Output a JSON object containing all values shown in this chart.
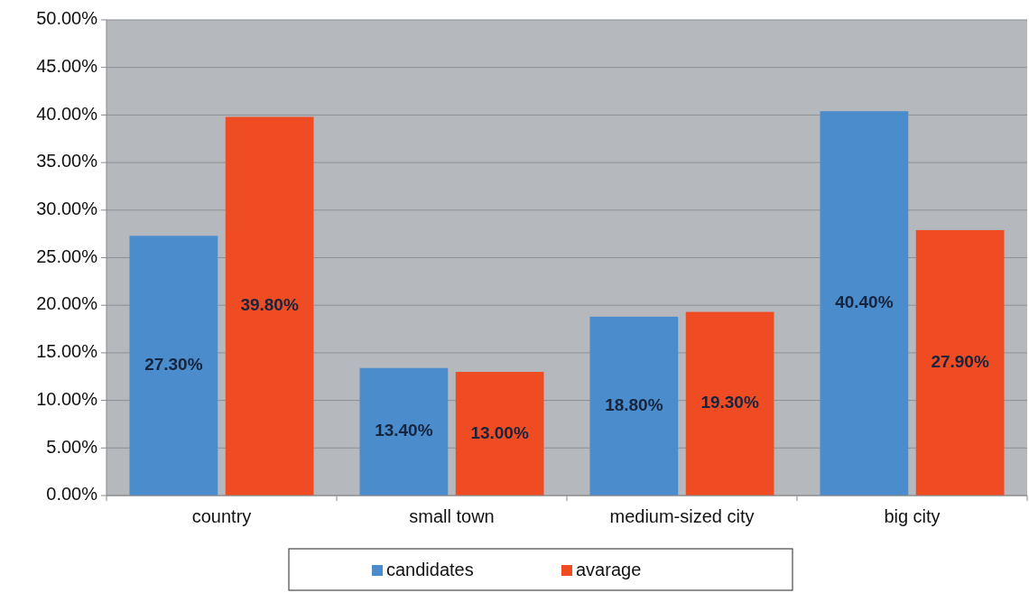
{
  "chart_data": {
    "type": "bar",
    "categories": [
      "country",
      "small town",
      "medium-sized city",
      "big city"
    ],
    "series": [
      {
        "name": "candidates",
        "color": "#4a8ccc",
        "values": [
          27.3,
          13.4,
          18.8,
          40.4
        ],
        "value_labels": [
          "27.30%",
          "13.40%",
          "18.80%",
          "40.40%"
        ]
      },
      {
        "name": "avarage",
        "color": "#f04c24",
        "values": [
          39.8,
          13.0,
          19.3,
          27.9
        ],
        "value_labels": [
          "39.80%",
          "13.00%",
          "19.30%",
          "27.90%"
        ]
      }
    ],
    "ylim": [
      0,
      50
    ],
    "yticks": [
      {
        "value": 0,
        "label": "0.00%"
      },
      {
        "value": 5,
        "label": "5.00%"
      },
      {
        "value": 10,
        "label": "10.00%"
      },
      {
        "value": 15,
        "label": "15.00%"
      },
      {
        "value": 20,
        "label": "20.00%"
      },
      {
        "value": 25,
        "label": "25.00%"
      },
      {
        "value": 30,
        "label": "30.00%"
      },
      {
        "value": 35,
        "label": "35.00%"
      },
      {
        "value": 40,
        "label": "40.00%"
      },
      {
        "value": 45,
        "label": "45.00%"
      },
      {
        "value": 50,
        "label": "50.00%"
      }
    ],
    "grid": "y",
    "legend": "bottom"
  }
}
